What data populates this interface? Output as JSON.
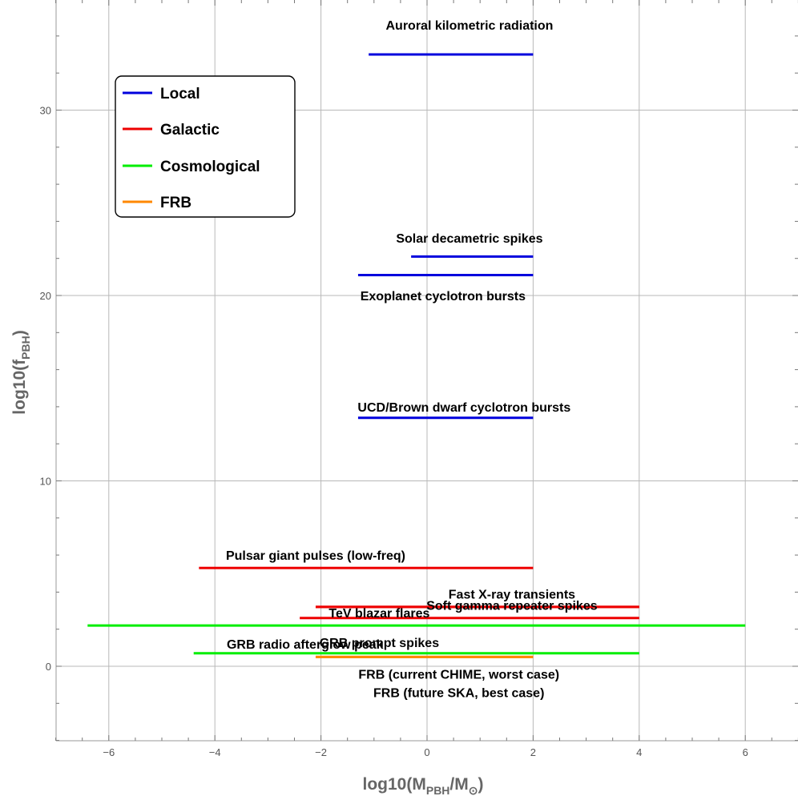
{
  "chart_data": {
    "type": "line",
    "xlabel": {
      "base": "log10(M",
      "sub": "PBH",
      "mid": "/M",
      "sub2": "⊙",
      "end": ")"
    },
    "ylabel": {
      "base": "log10(f",
      "sub": "PBH",
      "end": ")"
    },
    "xlim": [
      -7,
      7
    ],
    "ylim": [
      -4,
      36
    ],
    "xticks": [
      -6,
      -4,
      -2,
      0,
      2,
      4,
      6
    ],
    "xtick_labels": [
      "−6",
      "−4",
      "−2",
      "0",
      "2",
      "4",
      "6"
    ],
    "yticks": [
      0,
      10,
      20,
      30
    ],
    "ytick_labels": [
      "0",
      "10",
      "20",
      "30"
    ],
    "grid": true,
    "legend": {
      "placement": "top-left",
      "entries": [
        {
          "name": "Local",
          "color": "#0000dd"
        },
        {
          "name": "Galactic",
          "color": "#ee0000"
        },
        {
          "name": "Cosmological",
          "color": "#00ee00"
        },
        {
          "name": "FRB",
          "color": "#ff8800"
        }
      ]
    },
    "segments": [
      {
        "label": "Auroral kilometric radiation",
        "category": "Local",
        "x": [
          -1.1,
          2.0
        ],
        "y": 33.0,
        "label_x": 0.8,
        "label_y": 34.6
      },
      {
        "label": "Solar decametric spikes",
        "category": "Local",
        "x": [
          -0.3,
          2.0
        ],
        "y": 22.1,
        "label_x": 0.8,
        "label_y": 23.1
      },
      {
        "label": "Exoplanet cyclotron bursts",
        "category": "Local",
        "x": [
          -1.3,
          2.0
        ],
        "y": 21.1,
        "label_x": 0.3,
        "label_y": 20.0
      },
      {
        "label": "UCD/Brown dwarf cyclotron bursts",
        "category": "Local",
        "x": [
          -1.3,
          2.0
        ],
        "y": 13.4,
        "label_x": 0.7,
        "label_y": 14.0
      },
      {
        "label": "Pulsar giant pulses (low-freq)",
        "category": "Galactic",
        "x": [
          -4.3,
          2.0
        ],
        "y": 5.3,
        "label_x": -2.1,
        "label_y": 6.0
      },
      {
        "label": "Fast X-ray transients",
        "category": "Galactic",
        "x": [
          -2.1,
          4.0
        ],
        "y": 3.2,
        "label_x": 1.6,
        "label_y": 3.9
      },
      {
        "label": "Soft gamma repeater spikes",
        "category": "Galactic",
        "x": [
          -2.1,
          4.0
        ],
        "y": 3.2,
        "label_x": 1.6,
        "label_y": 3.3
      },
      {
        "label": "TeV blazar flares",
        "category": "Galactic",
        "x": [
          -2.4,
          4.0
        ],
        "y": 2.6,
        "label_x": -0.9,
        "label_y": 2.9
      },
      {
        "label": "GRB radio afterglow peak",
        "category": "Cosmological",
        "x": [
          -6.4,
          6.0
        ],
        "y": 2.2,
        "label_x": -2.3,
        "label_y": 1.2
      },
      {
        "label": "GRB prompt spikes",
        "category": "Cosmological",
        "x": [
          -4.4,
          4.0
        ],
        "y": 0.7,
        "label_x": -0.9,
        "label_y": 1.3
      },
      {
        "label": "FRB (current CHIME, worst case)",
        "category": "FRB",
        "x": [
          -2.1,
          2.0
        ],
        "y": 0.5,
        "label_x": 0.6,
        "label_y": -0.4
      },
      {
        "label": "FRB (future SKA, best case)",
        "category": "FRB",
        "x": [
          -2.1,
          2.0
        ],
        "y": 0.5,
        "label_x": 0.6,
        "label_y": -1.4
      }
    ]
  }
}
